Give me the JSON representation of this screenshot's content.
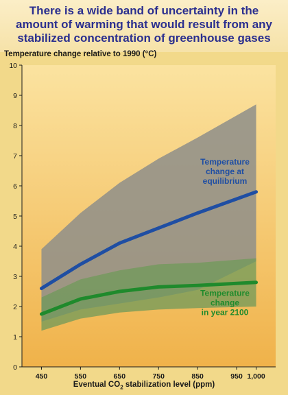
{
  "title": "There is a wide band of uncertainty in the amount of warming that would result from any stabilized concentration of greenhouse gases",
  "colors": {
    "title": "#2b2f8f",
    "equilibrium_line": "#1f4ea3",
    "equilibrium_band": "#8e8e8a",
    "year2100_line": "#1f8a2c",
    "year2100_band": "#6f9a5a",
    "bg_top": "#fbe3a0",
    "bg_bottom": "#f0b24a"
  },
  "chart_data": {
    "type": "line",
    "title": "There is a wide band of uncertainty in the amount of warming that would result from any stabilized concentration of greenhouse gases",
    "ylabel": "Temperature change relative to 1990 (°C)",
    "xlabel_prefix": "Eventual CO",
    "xlabel_sub": "2",
    "xlabel_suffix": " stabilization level (ppm)",
    "ylim": [
      0,
      10
    ],
    "xlim": [
      400,
      1050
    ],
    "yticks": [
      "0",
      "1",
      "2",
      "3",
      "4",
      "5",
      "6",
      "7",
      "8",
      "9",
      "10"
    ],
    "xticks": [
      {
        "value": 450,
        "label": "450"
      },
      {
        "value": 550,
        "label": "550"
      },
      {
        "value": 650,
        "label": "650"
      },
      {
        "value": 750,
        "label": "750"
      },
      {
        "value": 850,
        "label": "850"
      },
      {
        "value": 950,
        "label": "950"
      },
      {
        "value": 1000,
        "label": "1,000"
      }
    ],
    "x": [
      450,
      550,
      650,
      750,
      850,
      1000
    ],
    "series": [
      {
        "key": "equilibrium",
        "values": [
          2.6,
          3.4,
          4.1,
          4.6,
          5.1,
          5.8
        ],
        "band_upper": [
          3.9,
          5.1,
          6.1,
          6.9,
          7.6,
          8.7
        ],
        "band_lower": [
          1.5,
          1.9,
          2.1,
          2.3,
          2.55,
          3.5
        ],
        "annotation": [
          "Temperature",
          "change at",
          "equilibrium"
        ],
        "annotation_anchor": [
          920,
          6.7
        ]
      },
      {
        "key": "year2100",
        "values": [
          1.75,
          2.25,
          2.5,
          2.65,
          2.7,
          2.8
        ],
        "band_upper": [
          2.3,
          2.9,
          3.2,
          3.4,
          3.45,
          3.6
        ],
        "band_lower": [
          1.2,
          1.6,
          1.8,
          1.9,
          1.95,
          2.0
        ],
        "annotation": [
          "Temperature",
          "change",
          "in year 2100"
        ],
        "annotation_anchor": [
          920,
          2.35
        ]
      }
    ],
    "grid": false,
    "legend": "none"
  }
}
